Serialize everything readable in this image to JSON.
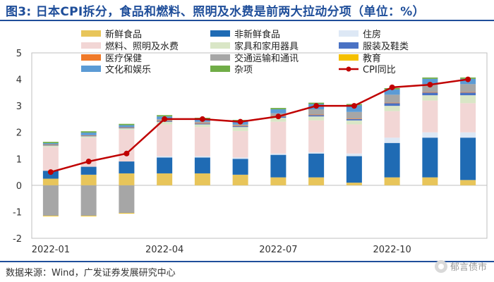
{
  "title": "图3: 日本CPI拆分，食品和燃料、照明及水费是前两大拉动分项（单位：%）",
  "source": "数据来源：Wind，广发证券发展研究中心",
  "watermark": "郁言债市",
  "chart_data": {
    "type": "bar",
    "stacked": true,
    "combined_with": "line",
    "categories": [
      "2022-01",
      "2022-02",
      "2022-03",
      "2022-04",
      "2022-05",
      "2022-06",
      "2022-07",
      "2022-08",
      "2022-09",
      "2022-10",
      "2022-11",
      "2022-12"
    ],
    "x_tick_labels": [
      "2022-01",
      "",
      "",
      "2022-04",
      "",
      "",
      "2022-07",
      "",
      "",
      "2022-10",
      "",
      ""
    ],
    "ylim": [
      -2,
      5
    ],
    "yticks": [
      -2,
      -1,
      0,
      1,
      2,
      3,
      4,
      5
    ],
    "grid": false,
    "legend_position": "top",
    "series": [
      {
        "name": "新鲜食品",
        "color": "#e8c55a",
        "values": [
          0.25,
          0.4,
          0.45,
          0.45,
          0.45,
          0.4,
          0.3,
          0.3,
          0.1,
          0.3,
          0.3,
          0.2
        ]
      },
      {
        "name": "非新鲜食品",
        "color": "#1f6bb4",
        "values": [
          0.3,
          0.3,
          0.45,
          0.6,
          0.6,
          0.6,
          0.85,
          0.9,
          1.0,
          1.3,
          1.5,
          1.6
        ]
      },
      {
        "name": "住房",
        "color": "#dde8f5",
        "values": [
          0.0,
          0.0,
          0.0,
          0.05,
          0.05,
          0.05,
          0.05,
          0.05,
          0.1,
          0.2,
          0.2,
          0.2
        ]
      },
      {
        "name": "燃料、照明及水费",
        "color": "#f2d6d5",
        "values": [
          0.9,
          1.1,
          1.2,
          1.2,
          1.1,
          1.0,
          1.2,
          1.2,
          1.1,
          1.0,
          1.2,
          1.1
        ]
      },
      {
        "name": "家具和家用器具",
        "color": "#d9e6c6",
        "values": [
          0.05,
          0.05,
          0.05,
          0.1,
          0.1,
          0.15,
          0.15,
          0.15,
          0.15,
          0.2,
          0.2,
          0.3
        ]
      },
      {
        "name": "服装及鞋类",
        "color": "#4a72c4",
        "values": [
          0.02,
          0.02,
          0.02,
          0.03,
          0.03,
          0.03,
          0.05,
          0.05,
          0.05,
          0.1,
          0.1,
          0.1
        ]
      },
      {
        "name": "医疗保健",
        "color": "#f07a2a",
        "values": [
          0.02,
          0.02,
          0.02,
          0.02,
          0.02,
          0.02,
          0.02,
          0.02,
          0.02,
          0.02,
          0.02,
          0.02
        ]
      },
      {
        "name": "交通运输和通讯",
        "color": "#a6a6a6",
        "values": [
          -1.15,
          -1.15,
          -1.05,
          0.05,
          0.05,
          0.05,
          0.1,
          0.2,
          0.25,
          0.3,
          0.3,
          0.3
        ]
      },
      {
        "name": "教育",
        "color": "#f5c000",
        "values": [
          -0.02,
          -0.02,
          -0.02,
          0.0,
          0.0,
          0.0,
          0.0,
          0.0,
          0.0,
          0.0,
          0.0,
          0.0
        ]
      },
      {
        "name": "文化和娱乐",
        "color": "#5b9bd5",
        "values": [
          0.05,
          0.1,
          0.08,
          0.1,
          0.1,
          0.12,
          0.15,
          0.2,
          0.25,
          0.2,
          0.2,
          0.2
        ]
      },
      {
        "name": "杂项",
        "color": "#70ad47",
        "values": [
          0.05,
          0.05,
          0.05,
          0.05,
          0.05,
          0.05,
          0.05,
          0.05,
          0.05,
          0.05,
          0.05,
          0.05
        ]
      }
    ],
    "line": {
      "name": "CPI同比",
      "color": "#c00000",
      "values": [
        0.5,
        0.9,
        1.2,
        2.5,
        2.5,
        2.4,
        2.6,
        3.0,
        3.0,
        3.7,
        3.8,
        4.0
      ]
    }
  }
}
